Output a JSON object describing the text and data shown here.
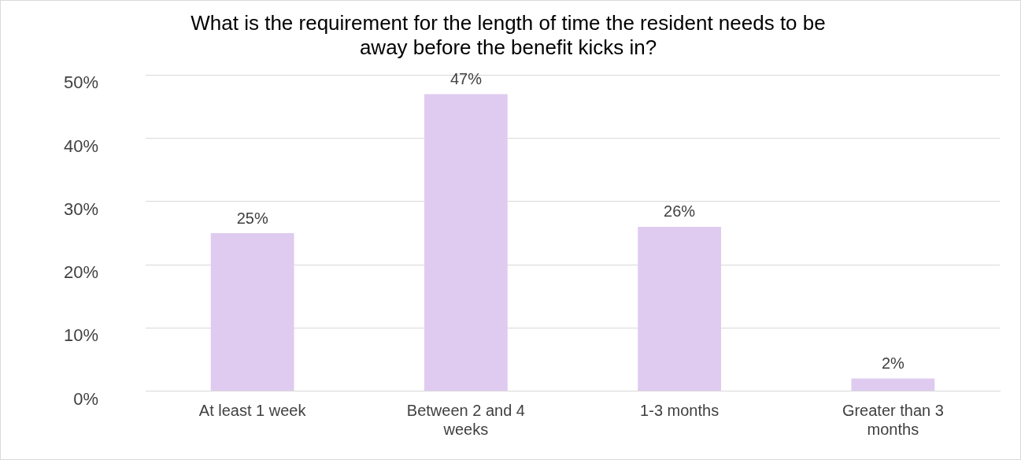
{
  "chart_data": {
    "type": "bar",
    "title": "What is the requirement for the length of time the resident needs to be away before the benefit kicks in?",
    "categories": [
      "At least 1 week",
      "Between 2 and 4 weeks",
      "1-3 months",
      "Greater than 3 months"
    ],
    "values": [
      25,
      47,
      26,
      2
    ],
    "value_labels": [
      "25%",
      "47%",
      "26%",
      "2%"
    ],
    "color": "#dfcbf0",
    "ylim": [
      0,
      50
    ],
    "yticks": [
      {
        "value": 0,
        "label": "0%"
      },
      {
        "value": 10,
        "label": "10%"
      },
      {
        "value": 20,
        "label": "20%"
      },
      {
        "value": 30,
        "label": "30%"
      },
      {
        "value": 40,
        "label": "40%"
      },
      {
        "value": 50,
        "label": "50%"
      }
    ],
    "grid": "y",
    "legend": false
  }
}
